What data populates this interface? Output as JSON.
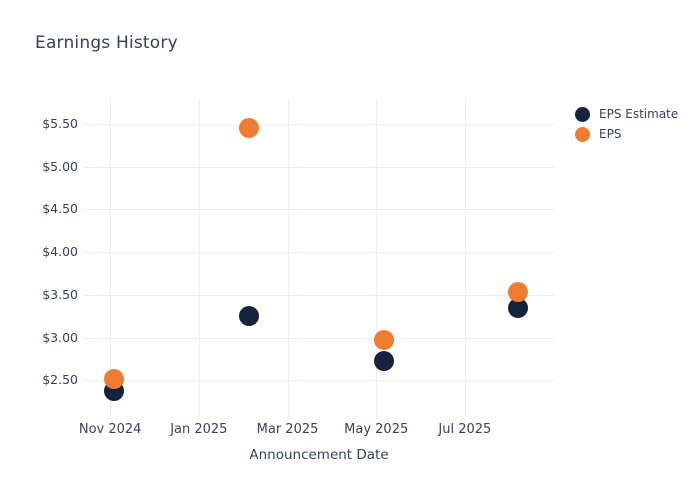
{
  "chart_data": {
    "type": "scatter",
    "title": "Earnings History",
    "xlabel": "Announcement Date",
    "ylabel": "",
    "grid": true,
    "legend_position": "right-top",
    "colors": {
      "background": "#ffffff",
      "grid": "#e9eef6",
      "text": "#33415e",
      "eps_estimate": "#14243f",
      "eps": "#ee7d31"
    },
    "marker_diameter_px": 20,
    "x_axis": {
      "unit": "months after Nov 2024 tick",
      "range": [
        -0.59,
        10.01
      ],
      "ticks": [
        {
          "pos": 0,
          "label": "Nov 2024"
        },
        {
          "pos": 2,
          "label": "Jan 2025"
        },
        {
          "pos": 4,
          "label": "Mar 2025"
        },
        {
          "pos": 6,
          "label": "May 2025"
        },
        {
          "pos": 8,
          "label": "Jul 2025"
        }
      ]
    },
    "y_axis": {
      "range": [
        2.07,
        5.79
      ],
      "ticks": [
        {
          "pos": 5.5,
          "label": "$5.50"
        },
        {
          "pos": 5.0,
          "label": "$5.00"
        },
        {
          "pos": 4.5,
          "label": "$4.50"
        },
        {
          "pos": 4.0,
          "label": "$4.00"
        },
        {
          "pos": 3.5,
          "label": "$3.50"
        },
        {
          "pos": 3.0,
          "label": "$3.00"
        },
        {
          "pos": 2.5,
          "label": "$2.50"
        }
      ]
    },
    "series": [
      {
        "name": "EPS Estimate",
        "color": "#14243f",
        "points": [
          {
            "x": 0.09,
            "y": 2.38
          },
          {
            "x": 3.13,
            "y": 3.25
          },
          {
            "x": 6.17,
            "y": 2.72
          },
          {
            "x": 9.19,
            "y": 3.34
          }
        ]
      },
      {
        "name": "EPS",
        "color": "#ee7d31",
        "points": [
          {
            "x": 0.09,
            "y": 2.51
          },
          {
            "x": 3.13,
            "y": 5.45
          },
          {
            "x": 6.17,
            "y": 2.97
          },
          {
            "x": 9.19,
            "y": 3.53
          }
        ]
      }
    ]
  }
}
